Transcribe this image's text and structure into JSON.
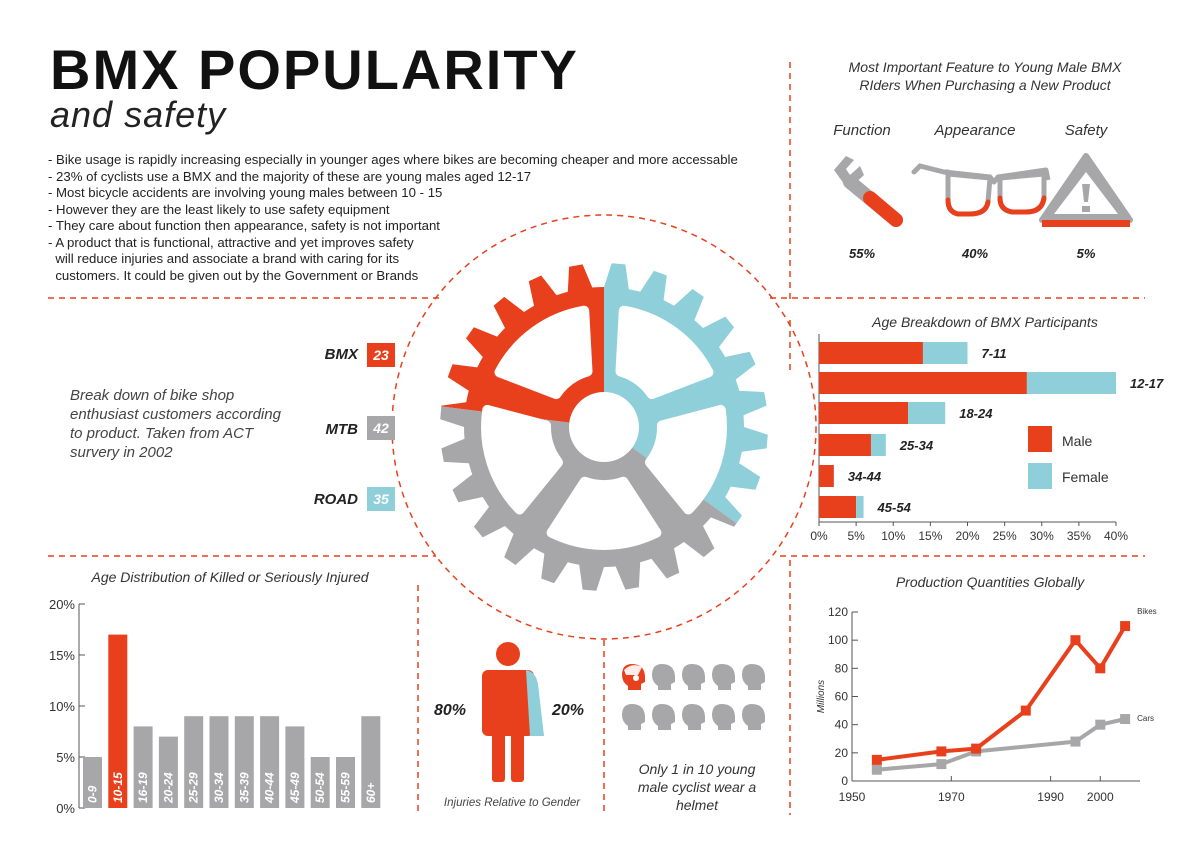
{
  "title": "BMX POPULARITY",
  "subtitle": "and safety",
  "intro_lines": [
    "- Bike usage is rapidly increasing especially in younger ages where bikes are becoming cheaper and more accessable",
    "- 23% of cyclists use a BMX and the majority of these are young males aged 12-17",
    "- Most bicycle accidents are involving young males between 10 - 15",
    "- However they are the least likely to use safety equipment",
    "- They care about function then appearance, safety is not important",
    "- A product that is functional, attractive and yet improves safety",
    "  will reduce injuries and associate a brand with caring for its",
    "  customers. It could be given out by the Government or Brands"
  ],
  "colors": {
    "red": "#e8401c",
    "blue": "#8ecfd9",
    "gray": "#a7a7a9",
    "dash": "#e8401c"
  },
  "features": {
    "title_line1": "Most Important Feature to Young Male BMX",
    "title_line2": "RIders When Purchasing a New Product",
    "items": [
      {
        "label": "Function",
        "value": "55%",
        "icon": "wrench-icon"
      },
      {
        "label": "Appearance",
        "value": "40%",
        "icon": "glasses-icon"
      },
      {
        "label": "Safety",
        "value": "5%",
        "icon": "warning-triangle-icon"
      }
    ]
  },
  "products": {
    "items": [
      {
        "label": "BMX",
        "value": "23"
      },
      {
        "label": "MTB",
        "value": "42"
      },
      {
        "label": "ROAD",
        "value": "35"
      }
    ],
    "breakdown_lines": [
      "Break down of bike shop",
      "enthusiast customers according",
      "to product. Taken from ACT",
      "survery in 2002"
    ]
  },
  "chart_data": [
    {
      "type": "bar",
      "orientation": "horizontal",
      "stacked": true,
      "title": "Age Breakdown of BMX Participants",
      "categories": [
        "7-11",
        "12-17",
        "18-24",
        "25-34",
        "34-44",
        "45-54"
      ],
      "series": [
        {
          "name": "Male",
          "values": [
            14,
            28,
            12,
            7,
            2,
            5
          ]
        },
        {
          "name": "Female",
          "values": [
            6,
            12,
            5,
            2,
            0,
            1
          ]
        }
      ],
      "xlim": [
        0,
        40
      ],
      "xticks": [
        "0%",
        "5%",
        "10%",
        "15%",
        "20%",
        "25%",
        "30%",
        "35%",
        "40%"
      ],
      "legend": "right"
    },
    {
      "type": "bar",
      "title": "Age Distribution of Killed or Seriously Injured",
      "categories": [
        "0-9",
        "10-15",
        "16-19",
        "20-24",
        "25-29",
        "30-34",
        "35-39",
        "40-44",
        "45-49",
        "50-54",
        "55-59",
        "60+"
      ],
      "values": [
        5,
        17,
        8,
        7,
        9,
        9,
        9,
        9,
        8,
        5,
        5,
        9
      ],
      "highlight": "10-15",
      "ylim": [
        0,
        20
      ],
      "yticks": [
        "0%",
        "5%",
        "10%",
        "15%",
        "20%"
      ]
    },
    {
      "type": "line",
      "title": "Production Quantities Globally",
      "ylabel": "Millions",
      "series": [
        {
          "name": "Bikes",
          "x": [
            1955,
            1968,
            1975,
            1985,
            1995,
            2000,
            2005
          ],
          "y": [
            15,
            21,
            23,
            50,
            100,
            80,
            110
          ]
        },
        {
          "name": "Cars",
          "x": [
            1955,
            1968,
            1975,
            1995,
            2000,
            2005
          ],
          "y": [
            8,
            12,
            21,
            28,
            40,
            44
          ]
        }
      ],
      "xlim": [
        1950,
        2008
      ],
      "ylim": [
        0,
        120
      ],
      "xticks": [
        "1950",
        "1970",
        "1990",
        "2000"
      ],
      "yticks": [
        "0",
        "20",
        "40",
        "60",
        "80",
        "100",
        "120"
      ]
    }
  ],
  "gender": {
    "male_value": "80%",
    "female_value": "20%",
    "caption": "Injuries Relative to Gender"
  },
  "helmet": {
    "caption_lines": [
      "Only 1 in 10 young",
      "male cyclist wear a",
      "helmet"
    ],
    "with_helmet": 1,
    "total": 10
  }
}
